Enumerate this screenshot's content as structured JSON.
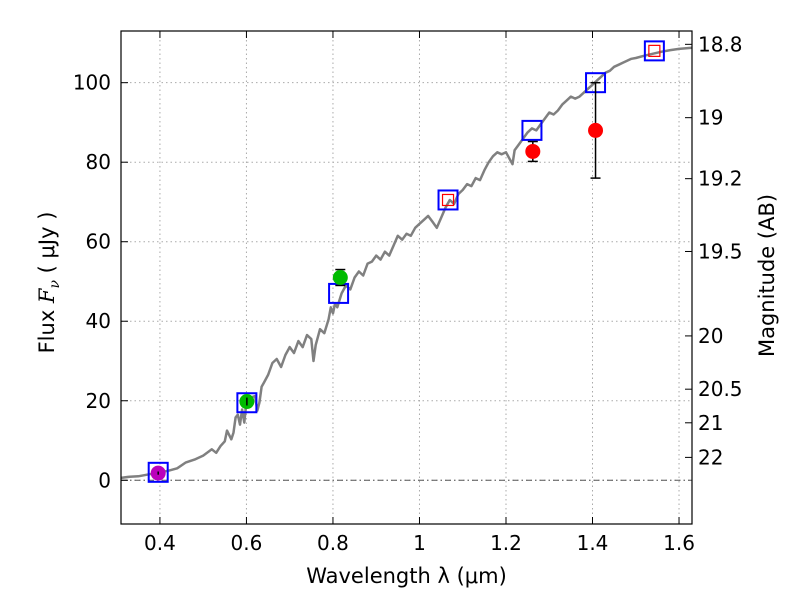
{
  "chart_data": {
    "type": "scatter",
    "xlabel": "Wavelength  λ (μm)",
    "ylabel": "Flux  F_ν  ( μJy )",
    "ylabel_parts": {
      "prefix": "Flux  ",
      "symbol": "F",
      "subscript": "ν",
      "suffix": "  ( μJy )"
    },
    "ylabel_right": "Magnitude (AB)",
    "xlim": [
      0.31,
      1.63
    ],
    "ylim": [
      -11,
      113
    ],
    "x_ticks": [
      0.4,
      0.6,
      0.8,
      1.0,
      1.2,
      1.4,
      1.6
    ],
    "x_tick_labels": [
      "0.4",
      "0.6",
      "0.8",
      "1",
      "1.2",
      "1.4",
      "1.6"
    ],
    "y_ticks": [
      0,
      20,
      40,
      60,
      80,
      100
    ],
    "y_tick_labels": [
      "0",
      "20",
      "40",
      "60",
      "80",
      "100"
    ],
    "mag_ticks": [
      {
        "label": "18.8",
        "mag": 18.8
      },
      {
        "label": "19",
        "mag": 19.0
      },
      {
        "label": "19.2",
        "mag": 19.2
      },
      {
        "label": "19.5",
        "mag": 19.5
      },
      {
        "label": "20",
        "mag": 20.0
      },
      {
        "label": "20.5",
        "mag": 20.5
      },
      {
        "label": "21",
        "mag": 21.0
      },
      {
        "label": "22",
        "mag": 22.0
      }
    ],
    "grid": true,
    "zero_line": true,
    "colors": {
      "model": "#808080",
      "model_photometry": "#0000ff",
      "inner_marker": "#ff0000",
      "green_obs": "#00bb00",
      "magenta_obs": "#bb00bb",
      "red_obs": "#ff0000",
      "errorbar": "#000000",
      "grid": "#aaaaaa"
    },
    "series": [
      {
        "name": "model spectrum",
        "kind": "line",
        "points": [
          [
            0.31,
            0.6
          ],
          [
            0.33,
            0.9
          ],
          [
            0.35,
            1.0
          ],
          [
            0.37,
            1.4
          ],
          [
            0.39,
            1.8
          ],
          [
            0.4,
            2.0
          ],
          [
            0.42,
            2.4
          ],
          [
            0.44,
            3.0
          ],
          [
            0.46,
            4.5
          ],
          [
            0.48,
            5.2
          ],
          [
            0.5,
            6.2
          ],
          [
            0.52,
            7.8
          ],
          [
            0.53,
            6.9
          ],
          [
            0.54,
            8.6
          ],
          [
            0.55,
            9.8
          ],
          [
            0.555,
            12.5
          ],
          [
            0.565,
            10.3
          ],
          [
            0.57,
            12.0
          ],
          [
            0.575,
            15.8
          ],
          [
            0.58,
            16.5
          ],
          [
            0.585,
            14.0
          ],
          [
            0.59,
            17.8
          ],
          [
            0.595,
            14.5
          ],
          [
            0.6,
            19.8
          ],
          [
            0.61,
            20.8
          ],
          [
            0.62,
            21.2
          ],
          [
            0.625,
            17.5
          ],
          [
            0.63,
            19.5
          ],
          [
            0.635,
            23.5
          ],
          [
            0.64,
            24.5
          ],
          [
            0.65,
            26.5
          ],
          [
            0.66,
            29.5
          ],
          [
            0.67,
            30.5
          ],
          [
            0.68,
            28.5
          ],
          [
            0.69,
            31.5
          ],
          [
            0.7,
            33.5
          ],
          [
            0.71,
            32.0
          ],
          [
            0.72,
            35.0
          ],
          [
            0.73,
            33.5
          ],
          [
            0.74,
            36.5
          ],
          [
            0.75,
            35.5
          ],
          [
            0.755,
            30.0
          ],
          [
            0.76,
            34.0
          ],
          [
            0.77,
            38.0
          ],
          [
            0.78,
            37.0
          ],
          [
            0.79,
            40.5
          ],
          [
            0.795,
            43.5
          ],
          [
            0.8,
            42.0
          ],
          [
            0.805,
            44.5
          ],
          [
            0.81,
            43.5
          ],
          [
            0.82,
            47.0
          ],
          [
            0.83,
            49.0
          ],
          [
            0.84,
            48.0
          ],
          [
            0.85,
            51.0
          ],
          [
            0.86,
            52.5
          ],
          [
            0.87,
            51.5
          ],
          [
            0.88,
            54.5
          ],
          [
            0.89,
            55.0
          ],
          [
            0.9,
            56.5
          ],
          [
            0.91,
            55.5
          ],
          [
            0.92,
            57.5
          ],
          [
            0.93,
            56.5
          ],
          [
            0.94,
            59.0
          ],
          [
            0.95,
            61.5
          ],
          [
            0.96,
            60.5
          ],
          [
            0.97,
            62.0
          ],
          [
            0.98,
            61.5
          ],
          [
            0.99,
            63.5
          ],
          [
            1.0,
            64.5
          ],
          [
            1.01,
            65.5
          ],
          [
            1.02,
            66.5
          ],
          [
            1.03,
            65.0
          ],
          [
            1.04,
            63.5
          ],
          [
            1.05,
            66.0
          ],
          [
            1.06,
            68.5
          ],
          [
            1.07,
            70.5
          ],
          [
            1.08,
            69.5
          ],
          [
            1.09,
            72.0
          ],
          [
            1.1,
            73.0
          ],
          [
            1.11,
            74.5
          ],
          [
            1.12,
            74.0
          ],
          [
            1.13,
            76.0
          ],
          [
            1.14,
            75.5
          ],
          [
            1.15,
            78.0
          ],
          [
            1.16,
            80.0
          ],
          [
            1.17,
            81.5
          ],
          [
            1.18,
            82.5
          ],
          [
            1.19,
            82.0
          ],
          [
            1.2,
            82.5
          ],
          [
            1.21,
            80.5
          ],
          [
            1.215,
            79.5
          ],
          [
            1.22,
            83.0
          ],
          [
            1.23,
            84.5
          ],
          [
            1.24,
            86.0
          ],
          [
            1.25,
            87.5
          ],
          [
            1.26,
            88.5
          ],
          [
            1.27,
            88.0
          ],
          [
            1.28,
            89.5
          ],
          [
            1.29,
            91.0
          ],
          [
            1.3,
            92.5
          ],
          [
            1.31,
            92.0
          ],
          [
            1.32,
            93.0
          ],
          [
            1.33,
            94.5
          ],
          [
            1.34,
            95.5
          ],
          [
            1.35,
            96.5
          ],
          [
            1.36,
            96.0
          ],
          [
            1.37,
            96.5
          ],
          [
            1.38,
            97.5
          ],
          [
            1.39,
            98.5
          ],
          [
            1.4,
            99.5
          ],
          [
            1.41,
            100.5
          ],
          [
            1.42,
            101.5
          ],
          [
            1.43,
            102.5
          ],
          [
            1.44,
            103.0
          ],
          [
            1.45,
            104.0
          ],
          [
            1.46,
            104.5
          ],
          [
            1.47,
            105.0
          ],
          [
            1.48,
            105.5
          ],
          [
            1.49,
            106.0
          ],
          [
            1.5,
            106.2
          ],
          [
            1.52,
            106.8
          ],
          [
            1.54,
            107.3
          ],
          [
            1.56,
            107.8
          ],
          [
            1.58,
            108.2
          ],
          [
            1.6,
            108.5
          ],
          [
            1.62,
            108.7
          ],
          [
            1.63,
            108.8
          ]
        ]
      },
      {
        "name": "model photometry",
        "kind": "open-square",
        "points": [
          {
            "x": 0.396,
            "y": 2.0
          },
          {
            "x": 0.601,
            "y": 19.5
          },
          {
            "x": 0.813,
            "y": 47.0
          },
          {
            "x": 1.066,
            "y": 70.5
          },
          {
            "x": 1.26,
            "y": 88.0
          },
          {
            "x": 1.407,
            "y": 100.0
          },
          {
            "x": 1.543,
            "y": 108.0
          }
        ]
      },
      {
        "name": "inner markers",
        "kind": "small-square",
        "points": [
          {
            "x": 1.066,
            "y": 70.5
          },
          {
            "x": 1.543,
            "y": 108.0
          }
        ]
      },
      {
        "name": "observed photometry",
        "kind": "filled-circle",
        "points": [
          {
            "x": 0.396,
            "y": 1.8,
            "err": 0.4,
            "color": "magenta_obs"
          },
          {
            "x": 0.601,
            "y": 19.8,
            "err": 1.0,
            "color": "green_obs"
          },
          {
            "x": 0.817,
            "y": 51.0,
            "err": 2.0,
            "color": "green_obs"
          },
          {
            "x": 1.262,
            "y": 82.7,
            "err": 2.5,
            "color": "red_obs"
          },
          {
            "x": 1.407,
            "y": 88.0,
            "err": 12.0,
            "color": "red_obs"
          }
        ]
      }
    ]
  }
}
